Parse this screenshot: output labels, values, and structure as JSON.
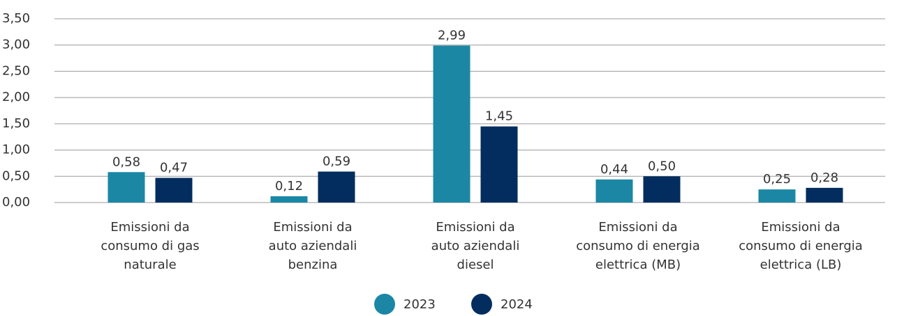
{
  "chart_data": {
    "type": "bar",
    "categories": [
      [
        "Emissioni da",
        "consumo di gas",
        "naturale"
      ],
      [
        "Emissioni da",
        "auto aziendali",
        "benzina"
      ],
      [
        "Emissioni da",
        "auto aziendali",
        "diesel"
      ],
      [
        "Emissioni da",
        "consumo di energia",
        "elettrica (MB)"
      ],
      [
        "Emissioni da",
        "consumo di energia",
        "elettrica (LB)"
      ]
    ],
    "series": [
      {
        "name": "2023",
        "color": "#1b87a5",
        "values": [
          0.58,
          0.12,
          2.99,
          0.44,
          0.25
        ],
        "value_labels": [
          "0,58",
          "0,12",
          "2,99",
          "0,44",
          "0,25"
        ]
      },
      {
        "name": "2024",
        "color": "#032d5e",
        "values": [
          0.47,
          0.59,
          1.45,
          0.5,
          0.28
        ],
        "value_labels": [
          "0,47",
          "0,59",
          "1,45",
          "0,50",
          "0,28"
        ]
      }
    ],
    "ylim": [
      0,
      3.5
    ],
    "yticks": [
      {
        "value": 0,
        "label": "0,00"
      },
      {
        "value": 0.5,
        "label": "0,50"
      },
      {
        "value": 1,
        "label": "1,00"
      },
      {
        "value": 1.5,
        "label": "1,50"
      },
      {
        "value": 2,
        "label": "2,00"
      },
      {
        "value": 2.5,
        "label": "2,50"
      },
      {
        "value": 3,
        "label": "3,00"
      },
      {
        "value": 3.5,
        "label": "3,50"
      }
    ],
    "grid": true,
    "legend": "bottom"
  }
}
